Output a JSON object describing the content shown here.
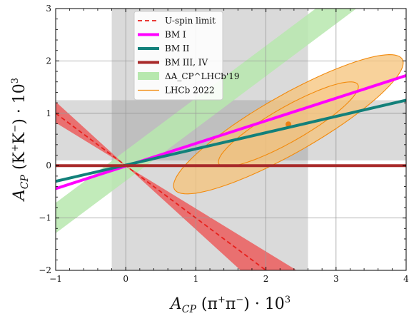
{
  "chart_data": {
    "type": "line",
    "xlabel": "A_CP (π⁺π⁻) · 10³",
    "ylabel": "A_CP (K⁺K⁻) · 10³",
    "xlim": [
      -1,
      4
    ],
    "ylim": [
      -2,
      3
    ],
    "xticks": [
      "−1",
      "0",
      "1",
      "2",
      "3",
      "4"
    ],
    "yticks": [
      "−2",
      "−1",
      "0",
      "1",
      "2",
      "3"
    ],
    "grid": true,
    "legend_position": "top-center",
    "series": [
      {
        "name": "U-spin limit",
        "style": "dashed",
        "color": "#e8201c",
        "x": [
          -1,
          2
        ],
        "y": [
          1,
          -2
        ]
      },
      {
        "name": "BM I",
        "style": "solid",
        "color": "#ff00ff",
        "x": [
          -1,
          4
        ],
        "y": [
          -0.44,
          1.72
        ]
      },
      {
        "name": "BM II",
        "style": "solid",
        "color": "#12807a",
        "x": [
          -1,
          4
        ],
        "y": [
          -0.3,
          1.25
        ]
      },
      {
        "name": "BM III, IV",
        "style": "solid",
        "color": "#a82a2a",
        "x": [
          -1,
          4
        ],
        "y": [
          0,
          0
        ]
      }
    ],
    "bands": [
      {
        "name": "ΔA_CP^LHCb'19",
        "color": "#b7e8ae",
        "slope": 1,
        "center_intercept": 0,
        "half_width": 0.29
      },
      {
        "name": "U-spin region",
        "color": "#ea6a6a",
        "wedge_slopes": [
          -0.82,
          -1.22
        ],
        "x_range": [
          -1,
          2.84
        ]
      }
    ],
    "vertical_band": {
      "color": "#d8d8d8",
      "x": [
        -0.2,
        2.6
      ]
    },
    "horizontal_band": {
      "color": "#d8d8d8",
      "y": [
        0.1,
        1.25
      ]
    },
    "ellipses": {
      "name": "LHCb 2022",
      "center": [
        2.32,
        0.79
      ],
      "fill": "#f6c37a",
      "stroke": "#f28a0c",
      "outer": {
        "a": 2.05,
        "b": 0.5,
        "angle_deg": 38.3
      },
      "inner": {
        "a": 1.25,
        "b": 0.3,
        "angle_deg": 38.3
      },
      "central_point": [
        2.32,
        0.79
      ]
    },
    "legend": [
      {
        "label": "U-spin limit",
        "symbol": "dashed",
        "color": "#e8201c"
      },
      {
        "label": "BM I",
        "symbol": "line",
        "color": "#ff00ff"
      },
      {
        "label": "BM II",
        "symbol": "line",
        "color": "#12807a"
      },
      {
        "label": "BM III, IV",
        "symbol": "line",
        "color": "#a82a2a"
      },
      {
        "label": "ΔA_CP^LHCb'19",
        "symbol": "patch",
        "color": "#b7e8ae"
      },
      {
        "label": "LHCb 2022",
        "symbol": "thin-line",
        "color": "#f28a0c"
      }
    ]
  }
}
